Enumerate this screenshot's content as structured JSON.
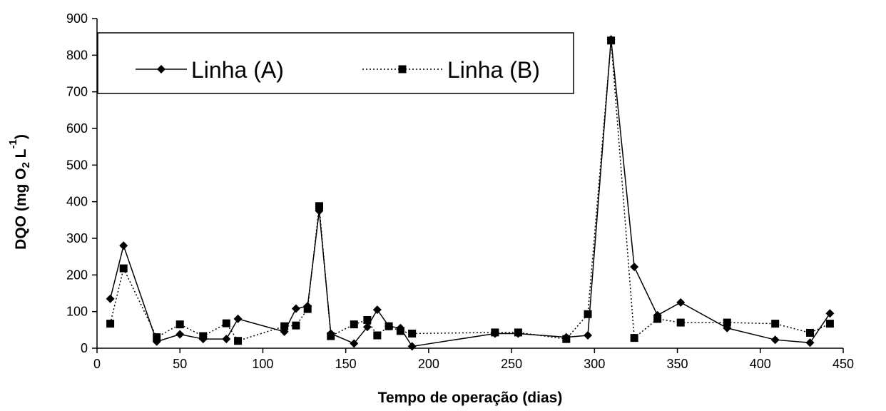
{
  "chart_data": {
    "type": "line",
    "title": "",
    "xlabel": "Tempo de operação (dias)",
    "ylabel": {
      "parts": [
        {
          "text": "DQO (mg O"
        },
        {
          "text": "2",
          "style": "sub"
        },
        {
          "text": " L"
        },
        {
          "text": "-1",
          "style": "sup"
        },
        {
          "text": ")"
        }
      ]
    },
    "xlim": [
      0,
      450
    ],
    "ylim": [
      0,
      900
    ],
    "xticks": [
      "0",
      "50",
      "100",
      "150",
      "200",
      "250",
      "300",
      "350",
      "400",
      "450"
    ],
    "yticks": [
      "0",
      "100",
      "200",
      "300",
      "400",
      "500",
      "600",
      "700",
      "800",
      "900"
    ],
    "grid": false,
    "legend_position": "top-left",
    "series": [
      {
        "name": "Linha (A)",
        "line_style": "solid",
        "marker": "diamond",
        "color": "#000000",
        "x": [
          8,
          16,
          36,
          50,
          64,
          78,
          85,
          113,
          120,
          127,
          134,
          141,
          155,
          163,
          169,
          176,
          183,
          190,
          240,
          254,
          283,
          296,
          310,
          324,
          338,
          352,
          380,
          409,
          430,
          442
        ],
        "y": [
          135,
          280,
          18,
          38,
          25,
          25,
          80,
          45,
          108,
          115,
          375,
          40,
          13,
          58,
          105,
          60,
          55,
          5,
          40,
          40,
          30,
          35,
          843,
          222,
          90,
          125,
          55,
          23,
          15,
          95
        ]
      },
      {
        "name": "Linha (B)",
        "line_style": "dotted",
        "marker": "square",
        "color": "#000000",
        "x": [
          8,
          16,
          36,
          50,
          64,
          78,
          85,
          113,
          120,
          127,
          134,
          141,
          155,
          163,
          169,
          176,
          183,
          190,
          240,
          254,
          283,
          296,
          310,
          324,
          338,
          352,
          380,
          409,
          430,
          442
        ],
        "y": [
          67,
          218,
          30,
          65,
          33,
          68,
          20,
          60,
          62,
          107,
          388,
          33,
          65,
          77,
          35,
          60,
          47,
          40,
          43,
          43,
          25,
          93,
          840,
          28,
          80,
          70,
          70,
          67,
          42,
          67
        ]
      }
    ]
  }
}
